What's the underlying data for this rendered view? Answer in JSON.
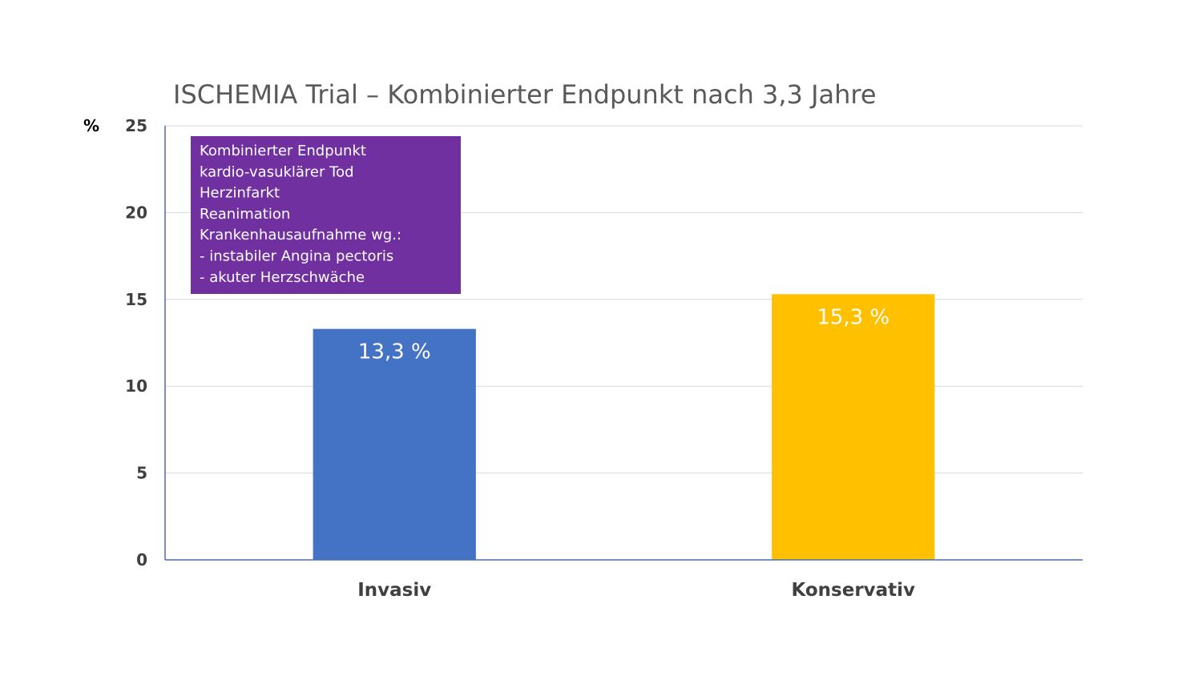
{
  "chart_data": {
    "type": "bar",
    "title": "ISCHEMIA Trial – Kombinierter Endpunkt nach 3,3 Jahre",
    "ylabel": "%",
    "xlabel": "",
    "ylim": [
      0,
      25
    ],
    "yticks": [
      0,
      5,
      10,
      15,
      20,
      25
    ],
    "grid": true,
    "categories": [
      "Invasiv",
      "Konservativ"
    ],
    "values": [
      13.3,
      15.3
    ],
    "data_labels": [
      "13,3 %",
      "15,3 %"
    ],
    "colors": [
      "#4472C4",
      "#FFC000"
    ],
    "annotation": {
      "color": "#7030A0",
      "lines": [
        "Kombinierter Endpunkt",
        "kardio-vasuklärer Tod",
        "Herzinfarkt",
        "Reanimation",
        "Krankenhausaufnahme wg.:",
        "-   instabiler Angina pectoris",
        "-   akuter Herzschwäche"
      ]
    }
  }
}
